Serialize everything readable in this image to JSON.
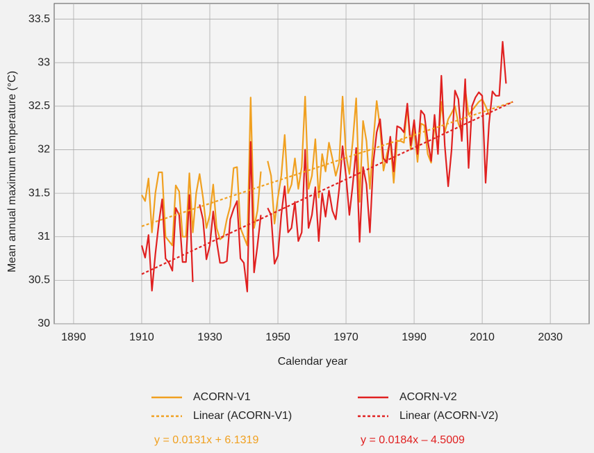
{
  "chart_data": {
    "type": "line",
    "xlabel": "Calendar year",
    "ylabel": "Mean annual maximum temperature (°C)",
    "xlim": [
      1884.3,
      2041.4
    ],
    "xticks": [
      1890,
      1910,
      1930,
      1950,
      1970,
      1990,
      2010,
      2030
    ],
    "ylim": [
      30,
      33.68
    ],
    "yticks": [
      30,
      30.5,
      31,
      31.5,
      32,
      32.5,
      33,
      33.5
    ],
    "grid": true,
    "x": [
      1910,
      1911,
      1912,
      1913,
      1914,
      1915,
      1916,
      1917,
      1918,
      1919,
      1920,
      1921,
      1922,
      1923,
      1924,
      1925,
      1926,
      1927,
      1928,
      1929,
      1930,
      1931,
      1932,
      1933,
      1934,
      1935,
      1936,
      1937,
      1938,
      1939,
      1940,
      1941,
      1942,
      1943,
      1944,
      1945,
      1946,
      1947,
      1948,
      1949,
      1950,
      1951,
      1952,
      1953,
      1954,
      1955,
      1956,
      1957,
      1958,
      1959,
      1960,
      1961,
      1962,
      1963,
      1964,
      1965,
      1966,
      1967,
      1968,
      1969,
      1970,
      1971,
      1972,
      1973,
      1974,
      1975,
      1976,
      1977,
      1978,
      1979,
      1980,
      1981,
      1982,
      1983,
      1984,
      1985,
      1986,
      1987,
      1988,
      1989,
      1990,
      1991,
      1992,
      1993,
      1994,
      1995,
      1996,
      1997,
      1998,
      1999,
      2000,
      2001,
      2002,
      2003,
      2004,
      2005,
      2006,
      2007,
      2008,
      2009,
      2010,
      2011,
      2012,
      2013,
      2014,
      2015,
      2016,
      2017
    ],
    "series": [
      {
        "name": "ACORN-V1",
        "color": "#f0a020",
        "values": [
          31.48,
          31.41,
          31.67,
          31.05,
          31.5,
          31.74,
          31.74,
          31.0,
          30.95,
          30.9,
          31.59,
          31.52,
          31.0,
          31.0,
          31.73,
          31.05,
          31.5,
          31.72,
          31.45,
          31.1,
          31.25,
          31.6,
          31.1,
          30.97,
          31.0,
          31.2,
          31.35,
          31.79,
          31.8,
          31.1,
          31.0,
          30.9,
          32.6,
          31.1,
          31.3,
          31.75,
          null,
          31.87,
          31.7,
          31.15,
          31.45,
          31.7,
          32.17,
          31.5,
          31.6,
          31.9,
          31.55,
          31.8,
          32.61,
          31.55,
          31.7,
          32.12,
          31.45,
          31.95,
          31.75,
          32.08,
          31.9,
          31.7,
          31.85,
          32.61,
          31.95,
          31.72,
          32.1,
          32.59,
          31.4,
          32.33,
          32.1,
          31.55,
          32.1,
          32.56,
          32.25,
          31.76,
          31.95,
          32.1,
          31.62,
          32.1,
          32.1,
          32.08,
          32.5,
          32.0,
          32.25,
          31.86,
          32.3,
          32.28,
          31.95,
          31.85,
          32.3,
          32.0,
          32.55,
          32.2,
          32.35,
          32.42,
          32.5,
          32.3,
          32.2,
          32.7,
          32.4,
          32.45,
          32.5,
          32.55,
          32.58,
          32.5,
          32.4,
          null,
          null,
          null,
          null,
          null
        ]
      },
      {
        "name": "ACORN-V2",
        "color": "#e02020",
        "values": [
          30.9,
          30.76,
          31.02,
          30.38,
          30.8,
          31.15,
          31.43,
          30.75,
          30.7,
          30.61,
          31.33,
          31.25,
          30.71,
          30.71,
          31.48,
          30.48,
          null,
          31.37,
          31.2,
          30.74,
          30.9,
          31.29,
          30.95,
          30.7,
          30.7,
          30.72,
          31.2,
          31.32,
          31.41,
          30.75,
          30.7,
          30.37,
          32.09,
          30.59,
          30.9,
          31.25,
          null,
          31.33,
          31.25,
          30.69,
          30.78,
          31.25,
          31.58,
          31.05,
          31.1,
          31.4,
          30.95,
          31.05,
          32.0,
          31.1,
          31.25,
          31.57,
          30.95,
          31.5,
          31.23,
          31.53,
          31.3,
          31.2,
          31.55,
          32.04,
          31.7,
          31.25,
          31.6,
          32.02,
          30.94,
          31.8,
          31.6,
          31.05,
          31.85,
          32.2,
          32.35,
          31.9,
          31.85,
          32.15,
          31.75,
          32.27,
          32.25,
          32.2,
          32.53,
          32.05,
          32.34,
          31.95,
          32.45,
          32.4,
          32.1,
          31.87,
          32.4,
          31.95,
          32.85,
          32.05,
          31.58,
          32.0,
          32.68,
          32.58,
          32.1,
          32.81,
          31.79,
          32.5,
          32.6,
          32.66,
          32.62,
          31.62,
          32.3,
          32.67,
          32.62,
          32.62,
          33.24,
          32.76
        ]
      }
    ],
    "trendlines": [
      {
        "name": "Linear (ACORN-V1)",
        "color": "#f0a020",
        "x": [
          1910,
          2019
        ],
        "values": [
          31.12,
          32.55
        ],
        "equation": "y = 0.0131x + 6.1319"
      },
      {
        "name": "Linear (ACORN-V2)",
        "color": "#e02020",
        "x": [
          1910,
          2019
        ],
        "values": [
          30.57,
          32.55
        ],
        "equation": "y = 0.0184x – 4.5009"
      }
    ]
  }
}
